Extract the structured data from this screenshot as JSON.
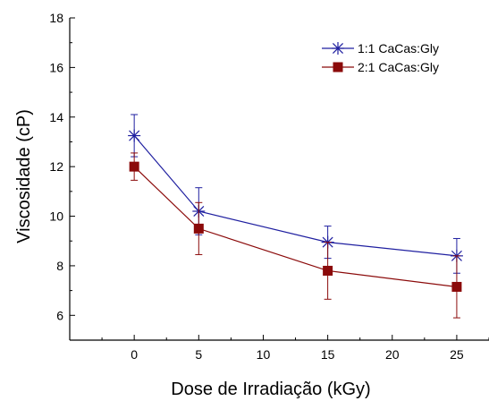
{
  "chart_data": {
    "type": "line",
    "xlabel": "Dose de Irradiação (kGy)",
    "ylabel": "Viscosidade (cP)",
    "xlim": [
      -5,
      27.5
    ],
    "ylim": [
      5,
      18
    ],
    "xticks": [
      0,
      5,
      10,
      15,
      20,
      25
    ],
    "yticks": [
      6,
      8,
      10,
      12,
      14,
      16,
      18
    ],
    "xtick_labels": [
      "0",
      "5",
      "10",
      "15",
      "20",
      "25"
    ],
    "ytick_labels": [
      "6",
      "8",
      "10",
      "12",
      "14",
      "16",
      "18"
    ],
    "grid": false,
    "legend_position": "top-right",
    "x": [
      0,
      5,
      15,
      25
    ],
    "series": [
      {
        "name": "1:1 CaCas:Gly",
        "values": [
          13.25,
          10.2,
          8.95,
          8.4
        ],
        "errors": [
          0.85,
          0.95,
          0.65,
          0.7
        ],
        "color": "#1f1fa0",
        "marker": "asterisk"
      },
      {
        "name": "2:1 CaCas:Gly",
        "values": [
          12.0,
          9.5,
          7.8,
          7.15
        ],
        "errors": [
          0.55,
          1.05,
          1.15,
          1.25
        ],
        "color": "#8b0a0a",
        "marker": "square"
      }
    ]
  }
}
